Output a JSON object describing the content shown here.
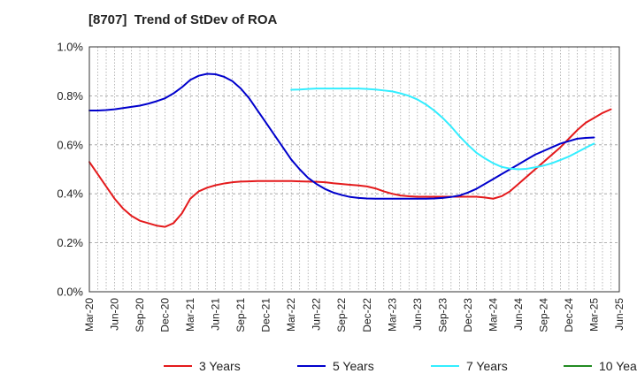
{
  "chart_data": {
    "type": "line",
    "title": "[8707]  Trend of StDev of ROA",
    "xlabel": "",
    "ylabel": "",
    "x_tick_labels": [
      "Mar-20",
      "Jun-20",
      "Sep-20",
      "Dec-20",
      "Mar-21",
      "Jun-21",
      "Sep-21",
      "Dec-21",
      "Mar-22",
      "Jun-22",
      "Sep-22",
      "Dec-22",
      "Mar-23",
      "Jun-23",
      "Sep-23",
      "Dec-23",
      "Mar-24",
      "Jun-24",
      "Sep-24",
      "Dec-24",
      "Mar-25",
      "Jun-25"
    ],
    "y_tick_labels": [
      "0.0%",
      "0.2%",
      "0.4%",
      "0.6%",
      "0.8%",
      "1.0%"
    ],
    "ylim": [
      0,
      1.0
    ],
    "grid": true,
    "legend_position": "bottom",
    "series": [
      {
        "name": "3 Years",
        "color": "#e41a1c",
        "points": [
          [
            "Mar-20",
            0.53
          ],
          [
            "Apr-20",
            0.48
          ],
          [
            "May-20",
            0.43
          ],
          [
            "Jun-20",
            0.38
          ],
          [
            "Jul-20",
            0.34
          ],
          [
            "Aug-20",
            0.31
          ],
          [
            "Sep-20",
            0.29
          ],
          [
            "Oct-20",
            0.28
          ],
          [
            "Nov-20",
            0.27
          ],
          [
            "Dec-20",
            0.265
          ],
          [
            "Jan-21",
            0.28
          ],
          [
            "Feb-21",
            0.32
          ],
          [
            "Mar-21",
            0.38
          ],
          [
            "Apr-21",
            0.41
          ],
          [
            "May-21",
            0.425
          ],
          [
            "Jun-21",
            0.435
          ],
          [
            "Jul-21",
            0.442
          ],
          [
            "Aug-21",
            0.447
          ],
          [
            "Sep-21",
            0.45
          ],
          [
            "Oct-21",
            0.451
          ],
          [
            "Nov-21",
            0.452
          ],
          [
            "Dec-21",
            0.452
          ],
          [
            "Jan-22",
            0.452
          ],
          [
            "Feb-22",
            0.452
          ],
          [
            "Mar-22",
            0.452
          ],
          [
            "Apr-22",
            0.451
          ],
          [
            "May-22",
            0.45
          ],
          [
            "Jun-22",
            0.449
          ],
          [
            "Jul-22",
            0.447
          ],
          [
            "Aug-22",
            0.443
          ],
          [
            "Sep-22",
            0.44
          ],
          [
            "Oct-22",
            0.437
          ],
          [
            "Nov-22",
            0.434
          ],
          [
            "Dec-22",
            0.43
          ],
          [
            "Jan-23",
            0.422
          ],
          [
            "Feb-23",
            0.41
          ],
          [
            "Mar-23",
            0.4
          ],
          [
            "Apr-23",
            0.393
          ],
          [
            "May-23",
            0.39
          ],
          [
            "Jun-23",
            0.388
          ],
          [
            "Jul-23",
            0.388
          ],
          [
            "Aug-23",
            0.388
          ],
          [
            "Sep-23",
            0.388
          ],
          [
            "Oct-23",
            0.388
          ],
          [
            "Nov-23",
            0.388
          ],
          [
            "Dec-23",
            0.388
          ],
          [
            "Jan-24",
            0.388
          ],
          [
            "Feb-24",
            0.385
          ],
          [
            "Mar-24",
            0.38
          ],
          [
            "Apr-24",
            0.39
          ],
          [
            "May-24",
            0.41
          ],
          [
            "Jun-24",
            0.44
          ],
          [
            "Jul-24",
            0.47
          ],
          [
            "Aug-24",
            0.5
          ],
          [
            "Sep-24",
            0.53
          ],
          [
            "Oct-24",
            0.56
          ],
          [
            "Nov-24",
            0.59
          ],
          [
            "Dec-24",
            0.625
          ],
          [
            "Jan-25",
            0.66
          ],
          [
            "Feb-25",
            0.69
          ],
          [
            "Mar-25",
            0.71
          ],
          [
            "Apr-25",
            0.73
          ],
          [
            "May-25",
            0.745
          ]
        ]
      },
      {
        "name": "5 Years",
        "color": "#0000cc",
        "points": [
          [
            "Mar-20",
            0.74
          ],
          [
            "Apr-20",
            0.74
          ],
          [
            "May-20",
            0.742
          ],
          [
            "Jun-20",
            0.745
          ],
          [
            "Jul-20",
            0.75
          ],
          [
            "Aug-20",
            0.755
          ],
          [
            "Sep-20",
            0.76
          ],
          [
            "Oct-20",
            0.768
          ],
          [
            "Nov-20",
            0.778
          ],
          [
            "Dec-20",
            0.79
          ],
          [
            "Jan-21",
            0.81
          ],
          [
            "Feb-21",
            0.835
          ],
          [
            "Mar-21",
            0.865
          ],
          [
            "Apr-21",
            0.882
          ],
          [
            "May-21",
            0.89
          ],
          [
            "Jun-21",
            0.888
          ],
          [
            "Jul-21",
            0.878
          ],
          [
            "Aug-21",
            0.86
          ],
          [
            "Sep-21",
            0.83
          ],
          [
            "Oct-21",
            0.79
          ],
          [
            "Nov-21",
            0.74
          ],
          [
            "Dec-21",
            0.69
          ],
          [
            "Jan-22",
            0.64
          ],
          [
            "Feb-22",
            0.59
          ],
          [
            "Mar-22",
            0.54
          ],
          [
            "Apr-22",
            0.5
          ],
          [
            "May-22",
            0.465
          ],
          [
            "Jun-22",
            0.44
          ],
          [
            "Jul-22",
            0.42
          ],
          [
            "Aug-22",
            0.405
          ],
          [
            "Sep-22",
            0.395
          ],
          [
            "Oct-22",
            0.387
          ],
          [
            "Nov-22",
            0.383
          ],
          [
            "Dec-22",
            0.381
          ],
          [
            "Jan-23",
            0.38
          ],
          [
            "Feb-23",
            0.38
          ],
          [
            "Mar-23",
            0.38
          ],
          [
            "Apr-23",
            0.38
          ],
          [
            "May-23",
            0.38
          ],
          [
            "Jun-23",
            0.38
          ],
          [
            "Jul-23",
            0.38
          ],
          [
            "Aug-23",
            0.381
          ],
          [
            "Sep-23",
            0.383
          ],
          [
            "Oct-23",
            0.387
          ],
          [
            "Nov-23",
            0.393
          ],
          [
            "Dec-23",
            0.405
          ],
          [
            "Jan-24",
            0.42
          ],
          [
            "Feb-24",
            0.44
          ],
          [
            "Mar-24",
            0.46
          ],
          [
            "Apr-24",
            0.48
          ],
          [
            "May-24",
            0.5
          ],
          [
            "Jun-24",
            0.52
          ],
          [
            "Jul-24",
            0.54
          ],
          [
            "Aug-24",
            0.56
          ],
          [
            "Sep-24",
            0.575
          ],
          [
            "Oct-24",
            0.59
          ],
          [
            "Nov-24",
            0.605
          ],
          [
            "Dec-24",
            0.615
          ],
          [
            "Jan-25",
            0.625
          ],
          [
            "Feb-25",
            0.628
          ],
          [
            "Mar-25",
            0.63
          ]
        ]
      },
      {
        "name": "7 Years",
        "color": "#33eeff",
        "points": [
          [
            "Mar-22",
            0.825
          ],
          [
            "Apr-22",
            0.826
          ],
          [
            "May-22",
            0.828
          ],
          [
            "Jun-22",
            0.83
          ],
          [
            "Jul-22",
            0.83
          ],
          [
            "Aug-22",
            0.83
          ],
          [
            "Sep-22",
            0.83
          ],
          [
            "Oct-22",
            0.83
          ],
          [
            "Nov-22",
            0.83
          ],
          [
            "Dec-22",
            0.828
          ],
          [
            "Jan-23",
            0.826
          ],
          [
            "Feb-23",
            0.822
          ],
          [
            "Mar-23",
            0.818
          ],
          [
            "Apr-23",
            0.81
          ],
          [
            "May-23",
            0.8
          ],
          [
            "Jun-23",
            0.785
          ],
          [
            "Jul-23",
            0.765
          ],
          [
            "Aug-23",
            0.74
          ],
          [
            "Sep-23",
            0.71
          ],
          [
            "Oct-23",
            0.675
          ],
          [
            "Nov-23",
            0.635
          ],
          [
            "Dec-23",
            0.6
          ],
          [
            "Jan-24",
            0.568
          ],
          [
            "Feb-24",
            0.545
          ],
          [
            "Mar-24",
            0.525
          ],
          [
            "Apr-24",
            0.51
          ],
          [
            "May-24",
            0.503
          ],
          [
            "Jun-24",
            0.5
          ],
          [
            "Jul-24",
            0.502
          ],
          [
            "Aug-24",
            0.508
          ],
          [
            "Sep-24",
            0.515
          ],
          [
            "Oct-24",
            0.525
          ],
          [
            "Nov-24",
            0.538
          ],
          [
            "Dec-24",
            0.552
          ],
          [
            "Jan-25",
            0.57
          ],
          [
            "Feb-25",
            0.588
          ],
          [
            "Mar-25",
            0.605
          ]
        ]
      },
      {
        "name": "10 Years",
        "color": "#228b22",
        "points": []
      }
    ]
  }
}
